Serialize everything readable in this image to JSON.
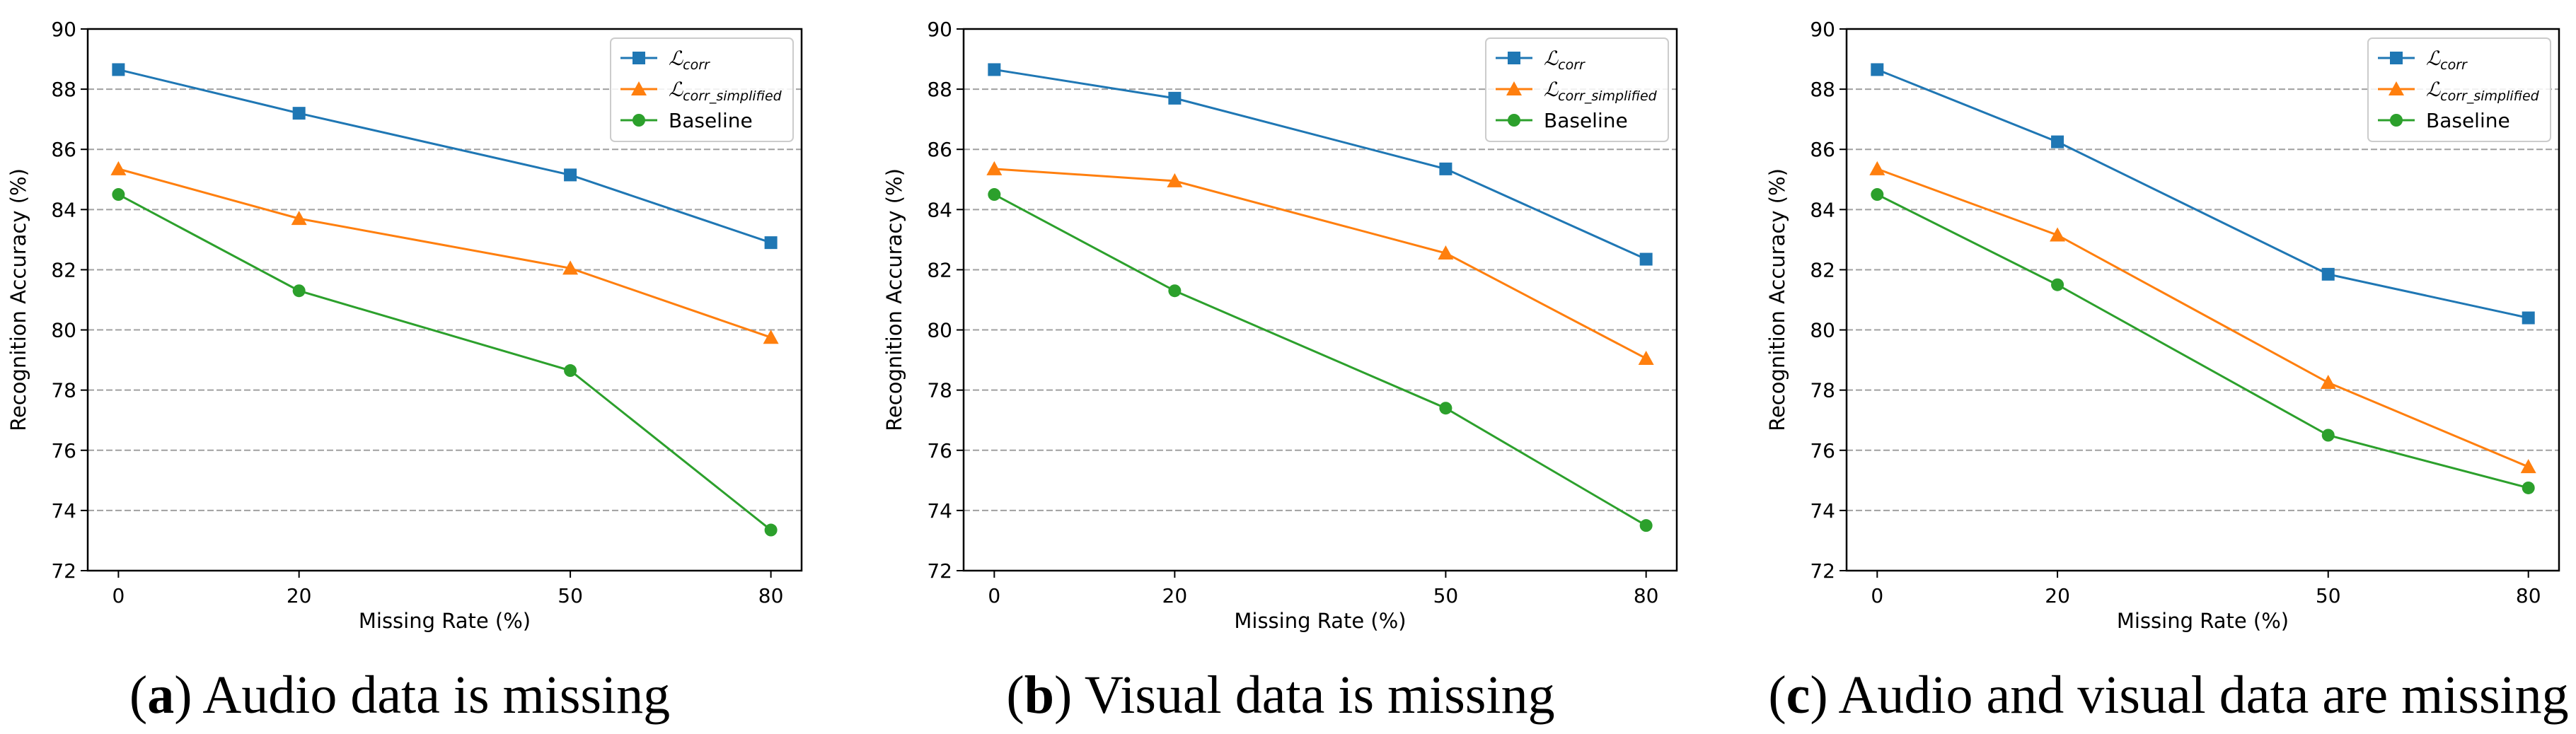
{
  "chart_data": [
    {
      "type": "line",
      "panel_letter": "a",
      "caption": "Audio data is missing",
      "categories": [
        "0",
        "20",
        "50",
        "80"
      ],
      "xlabel": "Missing Rate (%)",
      "ylabel": "Recognition Accuracy (%)",
      "ylim": [
        72,
        90
      ],
      "yticks": [
        72,
        74,
        76,
        78,
        80,
        82,
        84,
        86,
        88,
        90
      ],
      "grid": "horizontal dashed",
      "legend_position": "top-right",
      "series": [
        {
          "name": "corr",
          "legend_symbol": "ℒ",
          "legend_sub": "corr",
          "color": "#1f77b4",
          "marker": "square",
          "values": [
            88.65,
            87.2,
            85.15,
            82.9
          ]
        },
        {
          "name": "corr_simplified",
          "legend_symbol": "ℒ",
          "legend_sub": "corr_simplified",
          "color": "#ff7f0e",
          "marker": "triangle",
          "values": [
            85.35,
            83.7,
            82.05,
            79.75
          ]
        },
        {
          "name": "Baseline",
          "legend_symbol": "",
          "legend_sub": "",
          "legend_label": "Baseline",
          "color": "#2ca02c",
          "marker": "circle",
          "values": [
            84.5,
            81.3,
            78.65,
            73.35
          ]
        }
      ]
    },
    {
      "type": "line",
      "panel_letter": "b",
      "caption": "Visual data is missing",
      "categories": [
        "0",
        "20",
        "50",
        "80"
      ],
      "xlabel": "Missing Rate (%)",
      "ylabel": "Recognition Accuracy (%)",
      "ylim": [
        72,
        90
      ],
      "yticks": [
        72,
        74,
        76,
        78,
        80,
        82,
        84,
        86,
        88,
        90
      ],
      "grid": "horizontal dashed",
      "legend_position": "top-right",
      "series": [
        {
          "name": "corr",
          "legend_symbol": "ℒ",
          "legend_sub": "corr",
          "color": "#1f77b4",
          "marker": "square",
          "values": [
            88.65,
            87.7,
            85.35,
            82.35
          ]
        },
        {
          "name": "corr_simplified",
          "legend_symbol": "ℒ",
          "legend_sub": "corr_simplified",
          "color": "#ff7f0e",
          "marker": "triangle",
          "values": [
            85.35,
            84.95,
            82.55,
            79.05
          ]
        },
        {
          "name": "Baseline",
          "legend_symbol": "",
          "legend_sub": "",
          "legend_label": "Baseline",
          "color": "#2ca02c",
          "marker": "circle",
          "values": [
            84.5,
            81.3,
            77.4,
            73.5
          ]
        }
      ]
    },
    {
      "type": "line",
      "panel_letter": "c",
      "caption": "Audio and visual data are missing",
      "categories": [
        "0",
        "20",
        "50",
        "80"
      ],
      "xlabel": "Missing Rate (%)",
      "ylabel": "Recognition Accuracy (%)",
      "ylim": [
        72,
        90
      ],
      "yticks": [
        72,
        74,
        76,
        78,
        80,
        82,
        84,
        86,
        88,
        90
      ],
      "grid": "horizontal dashed",
      "legend_position": "top-right",
      "series": [
        {
          "name": "corr",
          "legend_symbol": "ℒ",
          "legend_sub": "corr",
          "color": "#1f77b4",
          "marker": "square",
          "values": [
            88.65,
            86.25,
            81.85,
            80.4
          ]
        },
        {
          "name": "corr_simplified",
          "legend_symbol": "ℒ",
          "legend_sub": "corr_simplified",
          "color": "#ff7f0e",
          "marker": "triangle",
          "values": [
            85.35,
            83.15,
            78.25,
            75.45
          ]
        },
        {
          "name": "Baseline",
          "legend_symbol": "",
          "legend_sub": "",
          "legend_label": "Baseline",
          "color": "#2ca02c",
          "marker": "circle",
          "values": [
            84.5,
            81.5,
            76.5,
            74.75
          ]
        }
      ]
    }
  ]
}
